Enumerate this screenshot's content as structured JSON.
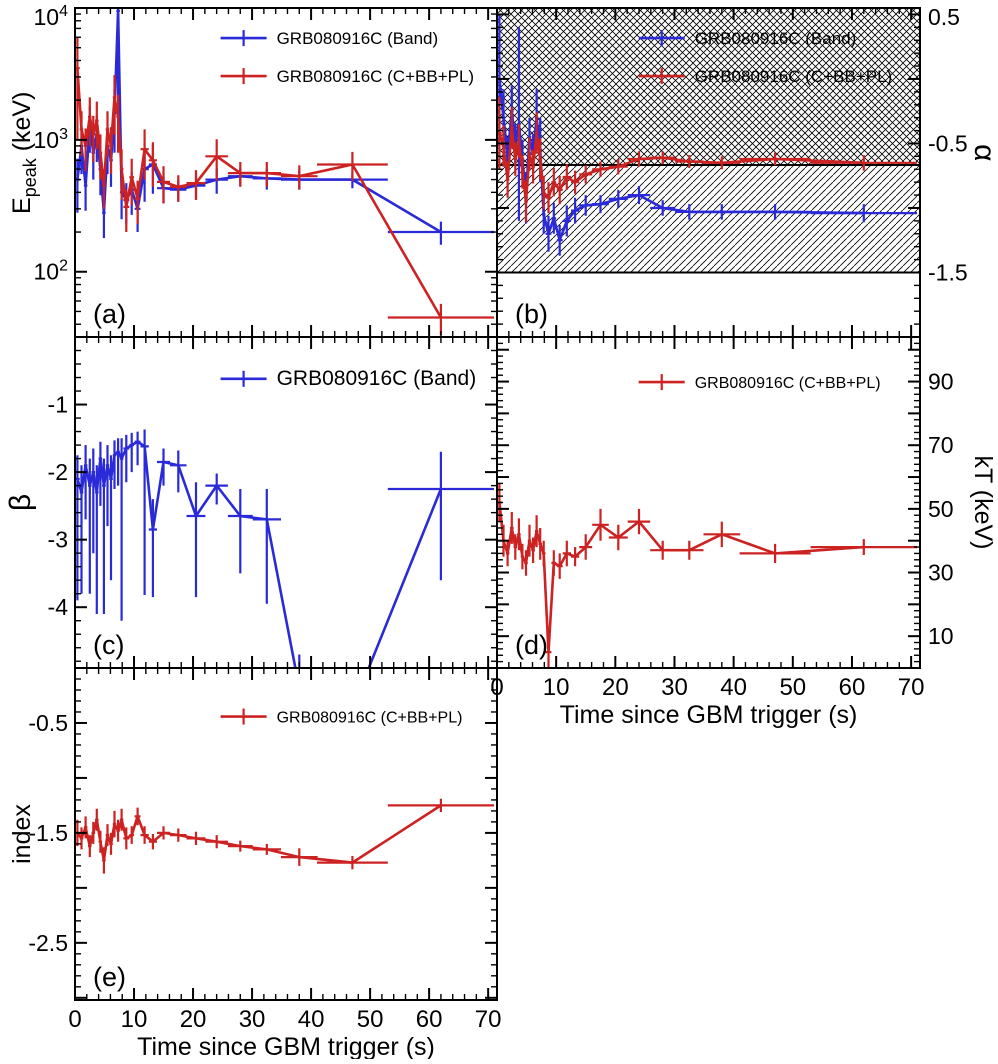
{
  "figure": {
    "xlabel": "Time since GBM trigger (s)",
    "colors": {
      "band_blue": "#2a2ad8",
      "cbbpl_red": "#cc2222"
    }
  },
  "time_bins": {
    "x": [
      0.4,
      1.1,
      1.8,
      2.5,
      3.1,
      3.7,
      4.3,
      4.9,
      5.5,
      6.1,
      6.7,
      7.3,
      7.9,
      8.7,
      9.6,
      10.6,
      11.8,
      13.2,
      15.0,
      17.5,
      20.5,
      24.0,
      28.0,
      32.5,
      38.0,
      47.0,
      62.0
    ],
    "xerr": [
      0.4,
      0.3,
      0.3,
      0.3,
      0.3,
      0.3,
      0.3,
      0.3,
      0.3,
      0.3,
      0.3,
      0.3,
      0.3,
      0.5,
      0.4,
      0.5,
      0.7,
      0.7,
      1.1,
      1.4,
      1.6,
      1.9,
      2.1,
      2.4,
      3.1,
      6.0,
      9.0
    ]
  },
  "chart_data": [
    {
      "id": "a",
      "panel_label": "(a)",
      "type": "line",
      "yscale": "log",
      "ylabel": "E_peak (keV)",
      "ylabel_size": 25,
      "xlim": [
        0,
        71.5
      ],
      "ylim": [
        32,
        10000
      ],
      "xticks": [
        0,
        10,
        20,
        30,
        40,
        50,
        60,
        70
      ],
      "yticks_labeled": [
        100,
        1000,
        10000
      ],
      "legend": {
        "fx": 0.345,
        "fy": 0.055,
        "dy": 38,
        "fontsize": 17,
        "entries": [
          {
            "label": "GRB080916C (Band)",
            "color": "#2a2ad8"
          },
          {
            "label": "GRB080916C (C+BB+PL)",
            "color": "#cc2222"
          }
        ]
      },
      "series": [
        {
          "name": "GRB080916C (Band)",
          "color": "#2a2ad8",
          "y": [
            500,
            900,
            450,
            1300,
            800,
            1100,
            600,
            280,
            900,
            700,
            1600,
            9500,
            400,
            350,
            420,
            300,
            600,
            650,
            430,
            420,
            450,
            500,
            530,
            510,
            500,
            500,
            200
          ],
          "yerr": [
            220,
            350,
            160,
            500,
            300,
            420,
            220,
            100,
            350,
            260,
            800,
            8500,
            150,
            120,
            150,
            100,
            260,
            260,
            100,
            80,
            90,
            110,
            80,
            90,
            80,
            70,
            40
          ]
        },
        {
          "name": "GRB080916C (C+BB+PL)",
          "color": "#cc2222",
          "y": [
            3500,
            1200,
            900,
            1500,
            1100,
            1400,
            800,
            450,
            1200,
            900,
            2100,
            1500,
            600,
            310,
            520,
            360,
            850,
            700,
            480,
            440,
            470,
            750,
            560,
            560,
            530,
            650,
            45
          ],
          "yerr": [
            2500,
            450,
            320,
            600,
            420,
            550,
            300,
            150,
            450,
            350,
            1000,
            700,
            250,
            110,
            200,
            130,
            350,
            260,
            150,
            100,
            120,
            260,
            120,
            120,
            110,
            160,
            12
          ]
        }
      ]
    },
    {
      "id": "b",
      "panel_label": "(b)",
      "type": "line",
      "yscale": "linear",
      "ylabel": "α",
      "ylabel_size": 30,
      "xlim": [
        0,
        71.5
      ],
      "ylim": [
        -2.0,
        0.55
      ],
      "xticks": [
        0,
        10,
        20,
        30,
        40,
        50,
        60,
        70
      ],
      "ymajor": [
        0.5,
        0,
        -0.5,
        -1,
        -1.5,
        -2
      ],
      "yminor_step": 0.1,
      "yticks_labeled": [
        0.5,
        -0.5,
        -1.5
      ],
      "bands": [
        {
          "y0": 0.55,
          "y1": -0.667,
          "pattern": "cross"
        },
        {
          "y0": -0.667,
          "y1": -1.5,
          "pattern": "diag"
        }
      ],
      "hlines": [
        -0.667,
        -1.5
      ],
      "legend": {
        "fx": 0.335,
        "fy": 0.055,
        "dy": 38,
        "fontsize": 17,
        "entries": [
          {
            "label": "GRB080916C (Band)",
            "color": "#2a2ad8"
          },
          {
            "label": "GRB080916C (C+BB+PL)",
            "color": "#cc2222"
          }
        ]
      },
      "series": [
        {
          "name": "GRB080916C (Band)",
          "color": "#2a2ad8",
          "y": [
            0.0,
            -0.3,
            -0.6,
            -0.25,
            -0.5,
            -0.35,
            -0.62,
            -0.92,
            -0.45,
            -0.58,
            -0.3,
            -0.55,
            -1.05,
            -1.2,
            -1.08,
            -1.25,
            -1.1,
            -1.02,
            -0.98,
            -0.97,
            -0.93,
            -0.9,
            -1.0,
            -1.03,
            -1.03,
            -1.03,
            -1.04
          ],
          "yerr": [
            0.5,
            0.22,
            0.15,
            0.2,
            0.15,
            0.75,
            0.15,
            0.2,
            0.15,
            0.15,
            0.22,
            0.25,
            0.15,
            0.14,
            0.12,
            0.12,
            0.12,
            0.1,
            0.08,
            0.07,
            0.07,
            0.07,
            0.06,
            0.06,
            0.06,
            0.06,
            0.07
          ]
        },
        {
          "name": "GRB080916C (C+BB+PL)",
          "color": "#cc2222",
          "y": [
            -0.42,
            -0.52,
            -0.78,
            -0.38,
            -0.62,
            -0.48,
            -0.72,
            -0.95,
            -0.58,
            -0.68,
            -0.42,
            -0.62,
            -0.88,
            -0.92,
            -0.8,
            -0.86,
            -0.76,
            -0.8,
            -0.74,
            -0.7,
            -0.68,
            -0.62,
            -0.61,
            -0.64,
            -0.65,
            -0.62,
            -0.65
          ],
          "yerr": [
            0.28,
            0.16,
            0.14,
            0.16,
            0.13,
            0.13,
            0.13,
            0.16,
            0.13,
            0.13,
            0.16,
            0.16,
            0.13,
            0.12,
            0.11,
            0.11,
            0.1,
            0.09,
            0.07,
            0.06,
            0.06,
            0.06,
            0.05,
            0.05,
            0.05,
            0.05,
            0.06
          ]
        }
      ]
    },
    {
      "id": "c",
      "panel_label": "(c)",
      "type": "line",
      "yscale": "linear",
      "ylabel": "β",
      "ylabel_size": 30,
      "xlim": [
        0,
        71.5
      ],
      "ylim": [
        -4.9,
        0.0
      ],
      "xticks": [
        0,
        10,
        20,
        30,
        40,
        50,
        60,
        70
      ],
      "ymajor": [
        0,
        -1,
        -2,
        -3,
        -4
      ],
      "yminor_step": 0.2,
      "yticks_labeled": [
        -1,
        -2,
        -3,
        -4
      ],
      "legend": {
        "fx": 0.345,
        "fy": 0.09,
        "dy": 40,
        "fontsize": 21,
        "entries": [
          {
            "label": "GRB080916C (Band)",
            "color": "#2a2ad8"
          }
        ]
      },
      "series": [
        {
          "name": "GRB080916C (Band)",
          "color": "#2a2ad8",
          "y": [
            -2.1,
            -2.3,
            -1.9,
            -2.2,
            -2.0,
            -2.3,
            -1.8,
            -2.2,
            -1.9,
            -2.1,
            -1.75,
            -1.7,
            -1.8,
            -1.65,
            -1.6,
            -1.55,
            -1.62,
            -2.85,
            -1.85,
            -1.9,
            -2.65,
            -2.2,
            -2.65,
            -2.7,
            -5.2,
            -5.5,
            -2.25
          ],
          "yerr_lo": [
            1.8,
            1.5,
            0.8,
            1.6,
            1.2,
            1.8,
            0.7,
            1.9,
            0.9,
            1.5,
            0.5,
            0.5,
            2.4,
            0.5,
            0.4,
            0.35,
            2.2,
            1.0,
            0.35,
            0.4,
            1.2,
            0.28,
            0.85,
            1.25,
            1.0,
            1.0,
            1.35
          ],
          "yerr_hi": [
            0.35,
            0.4,
            0.3,
            0.4,
            0.35,
            0.4,
            0.25,
            0.4,
            0.3,
            0.35,
            0.22,
            0.2,
            0.3,
            0.2,
            0.18,
            0.15,
            0.25,
            0.45,
            0.2,
            0.22,
            0.5,
            0.18,
            0.4,
            0.45,
            0.5,
            0.5,
            0.55
          ]
        }
      ]
    },
    {
      "id": "d",
      "panel_label": "(d)",
      "type": "line",
      "yscale": "linear",
      "ylabel": "kT (keV)",
      "ylabel_size": 25,
      "xlim": [
        0,
        71.5
      ],
      "ylim": [
        0,
        104
      ],
      "xticks": [
        0,
        10,
        20,
        30,
        40,
        50,
        60,
        70
      ],
      "ymajor": [
        10,
        20,
        30,
        40,
        50,
        60,
        70,
        80,
        90,
        100
      ],
      "yminor_step": 2,
      "yticks_labeled": [
        10,
        30,
        50,
        70,
        90
      ],
      "legend": {
        "fx": 0.335,
        "fy": 0.1,
        "dy": 36,
        "fontsize": 16,
        "entries": [
          {
            "label": "GRB080916C (C+BB+PL)",
            "color": "#cc2222"
          }
        ]
      },
      "series": [
        {
          "name": "GRB080916C (C+BB+PL)",
          "color": "#cc2222",
          "y": [
            52,
            40,
            36,
            44,
            38,
            42,
            35,
            33,
            40,
            37,
            43,
            39,
            36,
            5,
            33,
            32,
            36,
            35,
            38,
            45,
            41,
            46,
            37,
            37,
            42,
            36,
            38
          ],
          "yerr": [
            6,
            5,
            4,
            5,
            4,
            5,
            4,
            4,
            5,
            4,
            5,
            5,
            4,
            5,
            4,
            4,
            4,
            3,
            4,
            5,
            4,
            4,
            3,
            3,
            4,
            3,
            2.5
          ]
        }
      ]
    },
    {
      "id": "e",
      "panel_label": "(e)",
      "type": "line",
      "yscale": "linear",
      "ylabel": "index",
      "ylabel_size": 25,
      "xlim": [
        0,
        71.5
      ],
      "ylim": [
        -3.02,
        0.0
      ],
      "xticks": [
        0,
        10,
        20,
        30,
        40,
        50,
        60,
        70
      ],
      "ymajor": [
        -0.5,
        -1,
        -1.5,
        -2,
        -2.5,
        -3
      ],
      "yminor_step": 0.1,
      "yticks_labeled": [
        -0.5,
        -1.5,
        -2.5
      ],
      "legend": {
        "fx": 0.345,
        "fy": 0.11,
        "dy": 36,
        "fontsize": 16,
        "entries": [
          {
            "label": "GRB080916C (C+BB+PL)",
            "color": "#cc2222"
          }
        ]
      },
      "series": [
        {
          "name": "GRB080916C (C+BB+PL)",
          "color": "#cc2222",
          "y": [
            -1.5,
            -1.55,
            -1.45,
            -1.62,
            -1.5,
            -1.38,
            -1.58,
            -1.75,
            -1.52,
            -1.6,
            -1.42,
            -1.48,
            -1.38,
            -1.55,
            -1.52,
            -1.35,
            -1.52,
            -1.58,
            -1.5,
            -1.52,
            -1.55,
            -1.58,
            -1.62,
            -1.65,
            -1.72,
            -1.77,
            -1.25
          ],
          "yerr": [
            0.12,
            0.1,
            0.1,
            0.1,
            0.1,
            0.1,
            0.1,
            0.12,
            0.1,
            0.1,
            0.12,
            0.1,
            0.1,
            0.1,
            0.08,
            0.08,
            0.08,
            0.07,
            0.06,
            0.06,
            0.06,
            0.06,
            0.05,
            0.05,
            0.08,
            0.06,
            0.06
          ]
        }
      ]
    }
  ]
}
